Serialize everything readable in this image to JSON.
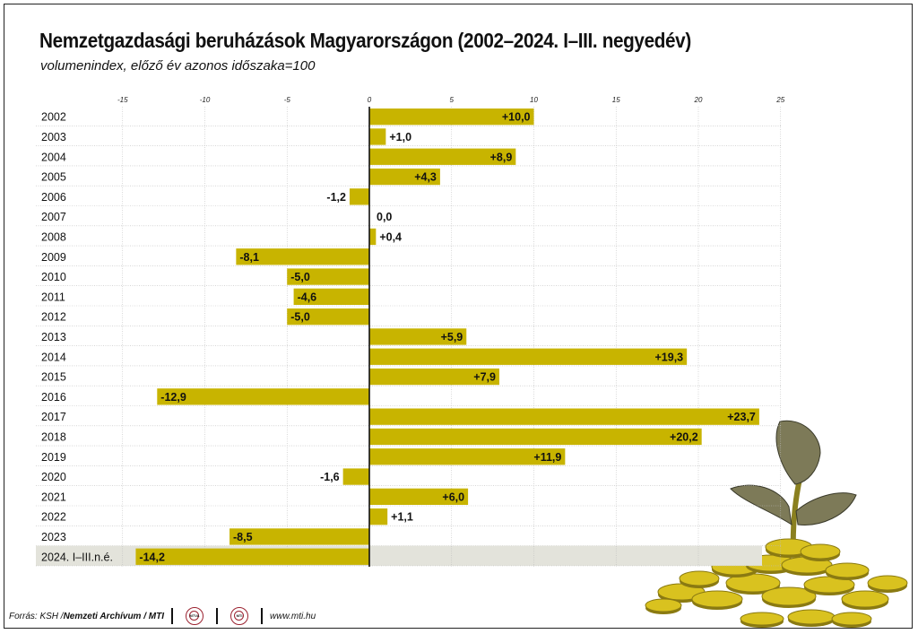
{
  "title": "Nemzetgazdasági beruházások Magyarországon (2002–2024. I–III. negyedév)",
  "subtitle": "volumenindex, előző év azonos időszaka=100",
  "footer": {
    "source_prefix": "Forrás: KSH / ",
    "source_bold": "Nemzeti Archívum / MTI",
    "logo1": "MTVA",
    "logo2": "MTI",
    "website": "www.mti.hu"
  },
  "colors": {
    "bar": "#c8b400",
    "highlight_row": "#e3e3db",
    "grid": "#bdbdbd",
    "axis": "#111111"
  },
  "chart_data": {
    "type": "bar",
    "orientation": "horizontal",
    "title": "Nemzetgazdasági beruházások Magyarországon (2002–2024. I–III. negyedév)",
    "subtitle": "volumenindex, előző év azonos időszaka=100",
    "xlim": [
      -15,
      25
    ],
    "xticks": [
      -15,
      -10,
      -5,
      0,
      5,
      10,
      15,
      20,
      25
    ],
    "grid": true,
    "highlight_category": "2024. I–III.n.é.",
    "categories": [
      "2002",
      "2003",
      "2004",
      "2005",
      "2006",
      "2007",
      "2008",
      "2009",
      "2010",
      "2011",
      "2012",
      "2013",
      "2014",
      "2015",
      "2016",
      "2017",
      "2018",
      "2019",
      "2020",
      "2021",
      "2022",
      "2023",
      "2024. I–III.n.é."
    ],
    "values": [
      10.0,
      1.0,
      8.9,
      4.3,
      -1.2,
      0.0,
      0.4,
      -8.1,
      -5.0,
      -4.6,
      -5.0,
      5.9,
      19.3,
      7.9,
      -12.9,
      23.7,
      20.2,
      11.9,
      -1.6,
      6.0,
      1.1,
      -8.5,
      -14.2
    ],
    "labels": [
      "+10,0",
      "+1,0",
      "+8,9",
      "+4,3",
      "-1,2",
      "0,0",
      "+0,4",
      "-8,1",
      "-5,0",
      "-4,6",
      "-5,0",
      "+5,9",
      "+19,3",
      "+7,9",
      "-12,9",
      "+23,7",
      "+20,2",
      "+11,9",
      "-1,6",
      "+6,0",
      "+1,1",
      "-8,5",
      "-14,2"
    ]
  }
}
